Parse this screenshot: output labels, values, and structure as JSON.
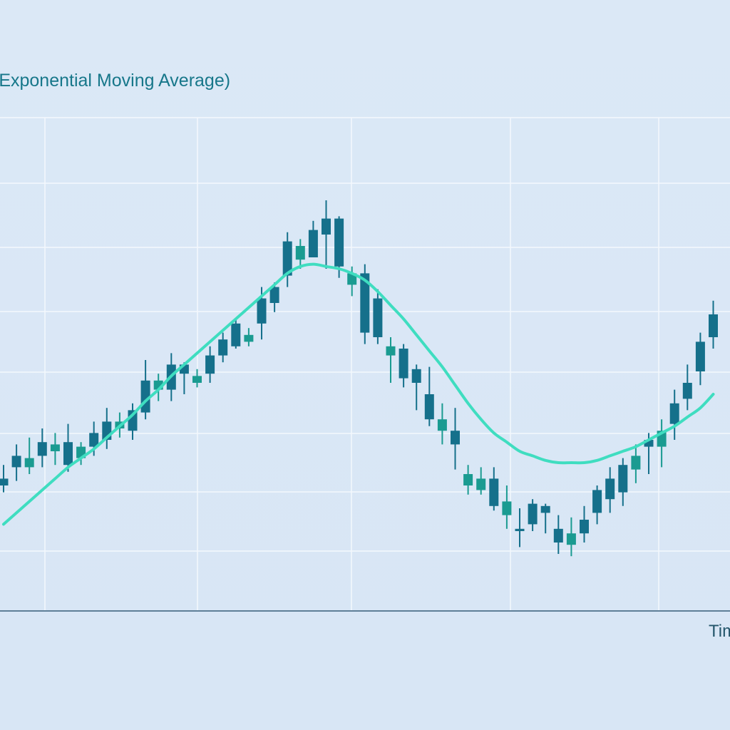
{
  "chart_data": {
    "type": "candlestick",
    "title": "(Exponential Moving Average)",
    "xlabel": "Time",
    "ylabel": "",
    "grid": true,
    "legend": "none",
    "colors": {
      "background": "#dae8f6",
      "grid": "#f4f8fd",
      "axis": "#5e7f97",
      "bearish_candle": "#15708b",
      "bullish_candle": "#1a9b91",
      "ema_line": "#3fddc0"
    },
    "x": [
      1,
      2,
      3,
      4,
      5,
      6,
      7,
      8,
      9,
      10,
      11,
      12,
      13,
      14,
      15,
      16,
      17,
      18,
      19,
      20,
      21,
      22,
      23,
      24,
      25,
      26,
      27,
      28,
      29,
      30,
      31,
      32,
      33,
      34,
      35,
      36,
      37,
      38,
      39,
      40,
      41,
      42,
      43,
      44,
      45,
      46,
      47,
      48,
      49,
      50,
      51,
      52,
      53,
      54,
      55,
      56
    ],
    "candles": [
      {
        "open": 58,
        "high": 64,
        "low": 52,
        "close": 55,
        "dir": "bear"
      },
      {
        "open": 63,
        "high": 73,
        "low": 57,
        "close": 68,
        "dir": "bear"
      },
      {
        "open": 63,
        "high": 76,
        "low": 60,
        "close": 67,
        "dir": "bull"
      },
      {
        "open": 68,
        "high": 80,
        "low": 63,
        "close": 74,
        "dir": "bear"
      },
      {
        "open": 70,
        "high": 78,
        "low": 64,
        "close": 73,
        "dir": "bull"
      },
      {
        "open": 64,
        "high": 82,
        "low": 61,
        "close": 74,
        "dir": "bear"
      },
      {
        "open": 67,
        "high": 74,
        "low": 64,
        "close": 72,
        "dir": "bull"
      },
      {
        "open": 72,
        "high": 83,
        "low": 68,
        "close": 78,
        "dir": "bear"
      },
      {
        "open": 75,
        "high": 89,
        "low": 71,
        "close": 83,
        "dir": "bear"
      },
      {
        "open": 80,
        "high": 87,
        "low": 76,
        "close": 83,
        "dir": "bull"
      },
      {
        "open": 79,
        "high": 91,
        "low": 75,
        "close": 88,
        "dir": "bear"
      },
      {
        "open": 87,
        "high": 110,
        "low": 84,
        "close": 101,
        "dir": "bear"
      },
      {
        "open": 97,
        "high": 104,
        "low": 92,
        "close": 101,
        "dir": "bull"
      },
      {
        "open": 97,
        "high": 113,
        "low": 92,
        "close": 108,
        "dir": "bear"
      },
      {
        "open": 104,
        "high": 109,
        "low": 95,
        "close": 108,
        "dir": "bear"
      },
      {
        "open": 100,
        "high": 106,
        "low": 98,
        "close": 103,
        "dir": "bull"
      },
      {
        "open": 104,
        "high": 116,
        "low": 100,
        "close": 112,
        "dir": "bear"
      },
      {
        "open": 112,
        "high": 122,
        "low": 109,
        "close": 119,
        "dir": "bear"
      },
      {
        "open": 116,
        "high": 128,
        "low": 115,
        "close": 126,
        "dir": "bear"
      },
      {
        "open": 118,
        "high": 124,
        "low": 116,
        "close": 121,
        "dir": "bull"
      },
      {
        "open": 126,
        "high": 142,
        "low": 119,
        "close": 137,
        "dir": "bear"
      },
      {
        "open": 135,
        "high": 144,
        "low": 131,
        "close": 142,
        "dir": "bear"
      },
      {
        "open": 147,
        "high": 166,
        "low": 142,
        "close": 162,
        "dir": "bear"
      },
      {
        "open": 154,
        "high": 163,
        "low": 150,
        "close": 160,
        "dir": "bull"
      },
      {
        "open": 155,
        "high": 171,
        "low": 155,
        "close": 167,
        "dir": "bear"
      },
      {
        "open": 165,
        "high": 180,
        "low": 150,
        "close": 172,
        "dir": "bear"
      },
      {
        "open": 151,
        "high": 173,
        "low": 146,
        "close": 172,
        "dir": "bear"
      },
      {
        "open": 143,
        "high": 151,
        "low": 138,
        "close": 148,
        "dir": "bull"
      },
      {
        "open": 148,
        "high": 152,
        "low": 117,
        "close": 122,
        "dir": "bear"
      },
      {
        "open": 137,
        "high": 141,
        "low": 117,
        "close": 120,
        "dir": "bear"
      },
      {
        "open": 112,
        "high": 120,
        "low": 100,
        "close": 116,
        "dir": "bull"
      },
      {
        "open": 115,
        "high": 117,
        "low": 98,
        "close": 102,
        "dir": "bear"
      },
      {
        "open": 100,
        "high": 108,
        "low": 88,
        "close": 106,
        "dir": "bear"
      },
      {
        "open": 95,
        "high": 107,
        "low": 81,
        "close": 84,
        "dir": "bear"
      },
      {
        "open": 84,
        "high": 91,
        "low": 73,
        "close": 79,
        "dir": "bull"
      },
      {
        "open": 73,
        "high": 89,
        "low": 62,
        "close": 79,
        "dir": "bear"
      },
      {
        "open": 55,
        "high": 64,
        "low": 51,
        "close": 60,
        "dir": "bull"
      },
      {
        "open": 58,
        "high": 63,
        "low": 51,
        "close": 53,
        "dir": "bull"
      },
      {
        "open": 46,
        "high": 63,
        "low": 44,
        "close": 58,
        "dir": "bear"
      },
      {
        "open": 42,
        "high": 55,
        "low": 36,
        "close": 48,
        "dir": "bull"
      },
      {
        "open": 35,
        "high": 45,
        "low": 28,
        "close": 36,
        "dir": "bear"
      },
      {
        "open": 38,
        "high": 49,
        "low": 35,
        "close": 47,
        "dir": "bear"
      },
      {
        "open": 43,
        "high": 47,
        "low": 34,
        "close": 46,
        "dir": "bear"
      },
      {
        "open": 36,
        "high": 42,
        "low": 25,
        "close": 30,
        "dir": "bear"
      },
      {
        "open": 29,
        "high": 41,
        "low": 24,
        "close": 34,
        "dir": "bull"
      },
      {
        "open": 34,
        "high": 46,
        "low": 30,
        "close": 40,
        "dir": "bear"
      },
      {
        "open": 43,
        "high": 55,
        "low": 38,
        "close": 53,
        "dir": "bear"
      },
      {
        "open": 49,
        "high": 63,
        "low": 43,
        "close": 58,
        "dir": "bear"
      },
      {
        "open": 52,
        "high": 67,
        "low": 46,
        "close": 64,
        "dir": "bear"
      },
      {
        "open": 62,
        "high": 73,
        "low": 56,
        "close": 68,
        "dir": "bull"
      },
      {
        "open": 72,
        "high": 78,
        "low": 60,
        "close": 75,
        "dir": "bear"
      },
      {
        "open": 72,
        "high": 84,
        "low": 63,
        "close": 79,
        "dir": "bull"
      },
      {
        "open": 82,
        "high": 97,
        "low": 75,
        "close": 91,
        "dir": "bear"
      },
      {
        "open": 93,
        "high": 108,
        "low": 88,
        "close": 100,
        "dir": "bear"
      },
      {
        "open": 105,
        "high": 122,
        "low": 99,
        "close": 118,
        "dir": "bear"
      },
      {
        "open": 120,
        "high": 136,
        "low": 115,
        "close": 130,
        "dir": "bear"
      }
    ],
    "ema": [
      38,
      43,
      48,
      53,
      58,
      63,
      67,
      71,
      76,
      81,
      86,
      92,
      97,
      103,
      108,
      113,
      118,
      123,
      128,
      133,
      138,
      143,
      148,
      151,
      152,
      151,
      150,
      148,
      145,
      140,
      134,
      128,
      121,
      114,
      107,
      99,
      91,
      84,
      78,
      74,
      70,
      68,
      66,
      65,
      65,
      65,
      66,
      68,
      70,
      72,
      75,
      78,
      81,
      85,
      89,
      95
    ],
    "xlim": [
      0,
      57
    ],
    "ylim": [
      0,
      200
    ]
  }
}
